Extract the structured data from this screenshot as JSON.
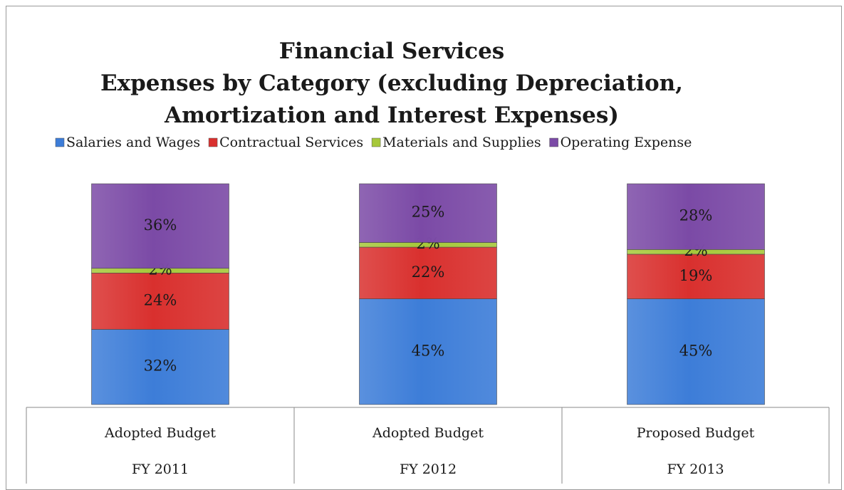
{
  "chart_data": {
    "type": "bar",
    "stacked": true,
    "title": [
      "Financial Services",
      "Expenses by Category (excluding Depreciation,",
      "Amortization and Interest Expenses)"
    ],
    "legend_position": "top",
    "categories": [
      [
        "Adopted Budget",
        "FY 2011"
      ],
      [
        "Adopted Budget",
        "FY 2012"
      ],
      [
        "Proposed Budget",
        "FY 2013"
      ]
    ],
    "series": [
      {
        "name": "Salaries and Wages",
        "values": [
          32,
          45,
          45
        ],
        "labels": [
          "32%",
          "45%",
          "45%"
        ],
        "color": "#3d7dd8"
      },
      {
        "name": "Contractual Services",
        "values": [
          24,
          22,
          19
        ],
        "labels": [
          "24%",
          "22%",
          "19%"
        ],
        "color": "#d9302e"
      },
      {
        "name": "Materials and Supplies",
        "values": [
          2,
          2,
          2
        ],
        "labels": [
          "2%",
          "2%",
          "2%"
        ],
        "color": "#a6c83a"
      },
      {
        "name": "Operating Expense",
        "values": [
          36,
          25,
          28
        ],
        "labels": [
          "36%",
          "25%",
          "28%"
        ],
        "color": "#7b4aa6"
      }
    ],
    "ylim": [
      0,
      100
    ],
    "grid": false
  }
}
